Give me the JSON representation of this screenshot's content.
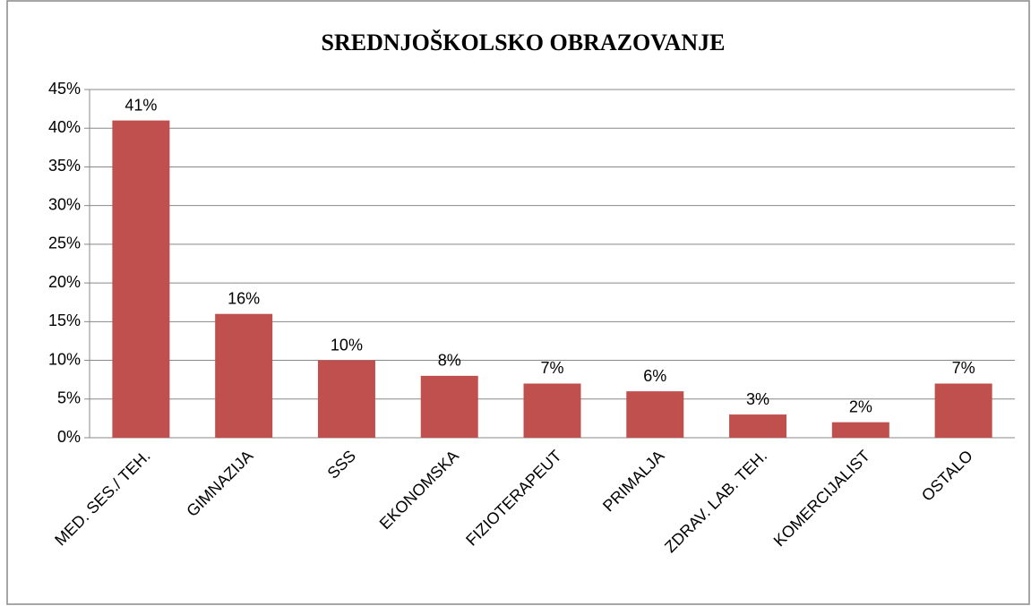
{
  "chart_data": {
    "type": "bar",
    "title": "SREDNJOŠKOLSKO OBRAZOVANJE",
    "categories": [
      "MED. SES./ TEH.",
      "GIMNAZIJA",
      "SSS",
      "EKONOMSKA",
      "FIZIOTERAPEUT",
      "PRIMALJA",
      "ZDRAV. LAB. TEH.",
      "KOMERCIJALIST",
      "OSTALO"
    ],
    "values": [
      41,
      16,
      10,
      8,
      7,
      6,
      3,
      2,
      7
    ],
    "value_labels": [
      "41%",
      "16%",
      "10%",
      "8%",
      "7%",
      "6%",
      "3%",
      "2%",
      "7%"
    ],
    "color": "#c0504d",
    "ylim": [
      0,
      45
    ],
    "yticks": [
      {
        "value": 0,
        "label": "0%"
      },
      {
        "value": 5,
        "label": "5%"
      },
      {
        "value": 10,
        "label": "10%"
      },
      {
        "value": 15,
        "label": "15%"
      },
      {
        "value": 20,
        "label": "20%"
      },
      {
        "value": 25,
        "label": "25%"
      },
      {
        "value": 30,
        "label": "30%"
      },
      {
        "value": 35,
        "label": "35%"
      },
      {
        "value": 40,
        "label": "40%"
      },
      {
        "value": 45,
        "label": "45%"
      }
    ],
    "grid": true
  }
}
